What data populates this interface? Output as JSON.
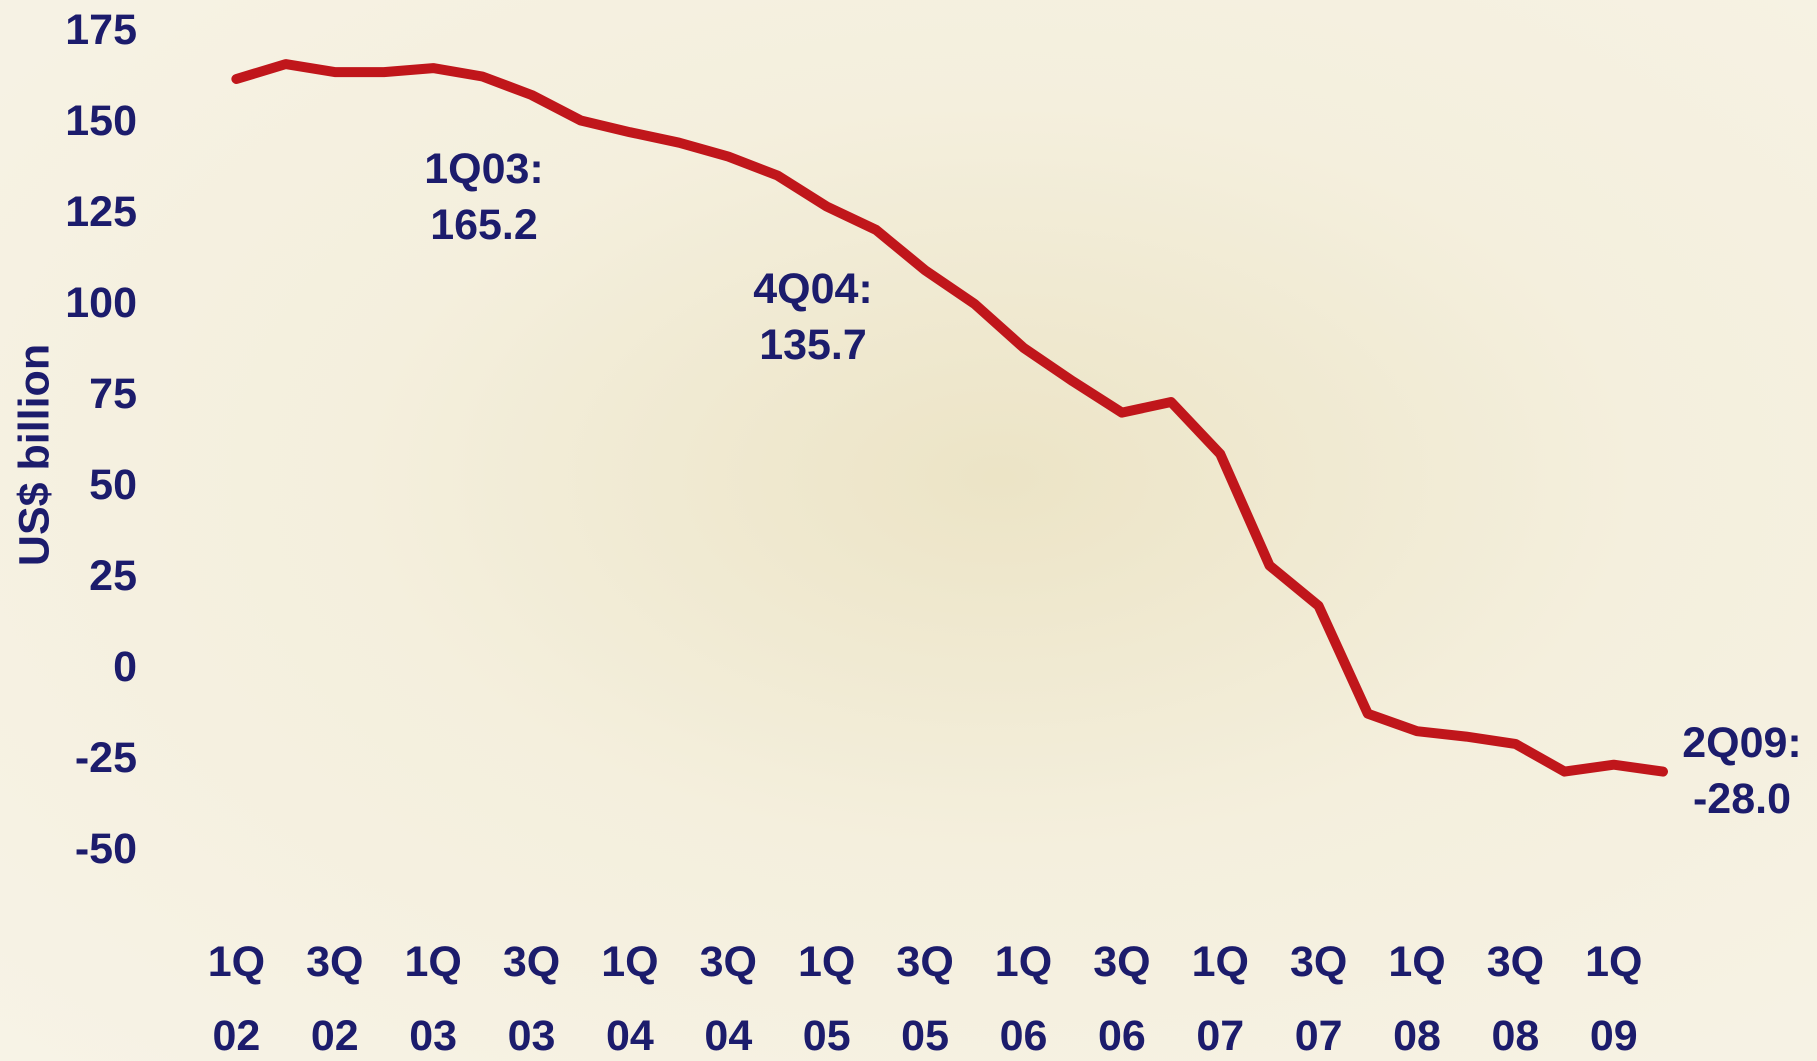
{
  "chart_data": {
    "type": "line",
    "y_label": "US$ billion",
    "categories": [
      "1Q 02",
      null,
      "3Q 02",
      null,
      "1Q 03",
      null,
      "3Q 03",
      null,
      "1Q 04",
      null,
      "3Q 04",
      null,
      "1Q 05",
      null,
      "3Q 05",
      null,
      "1Q 06",
      null,
      "3Q 06",
      null,
      "1Q 07",
      null,
      "3Q 07",
      null,
      "1Q 08",
      null,
      "3Q 08",
      null,
      "1Q 09",
      null
    ],
    "series": [
      {
        "color": "#c0161b",
        "values": [
          162.2,
          166.3,
          164.1,
          164.1,
          165.2,
          162.9,
          157.8,
          150.8,
          147.6,
          144.7,
          140.9,
          135.7,
          127.2,
          120.8,
          109.7,
          100.5,
          88.4,
          79.2,
          70.6,
          73.5,
          59.2,
          28.6,
          17.5,
          -12.1,
          -16.9,
          -18.4,
          -20.4,
          -28.0,
          -26.1,
          -28.0
        ]
      }
    ],
    "ylim": [
      -50,
      175
    ],
    "yticks": [
      175,
      150,
      125,
      100,
      75,
      50,
      25,
      0,
      -25,
      -50
    ],
    "annotations": [
      "1Q03: 165.2",
      "4Q04: 135.7",
      "2Q09: -28.0"
    ]
  }
}
